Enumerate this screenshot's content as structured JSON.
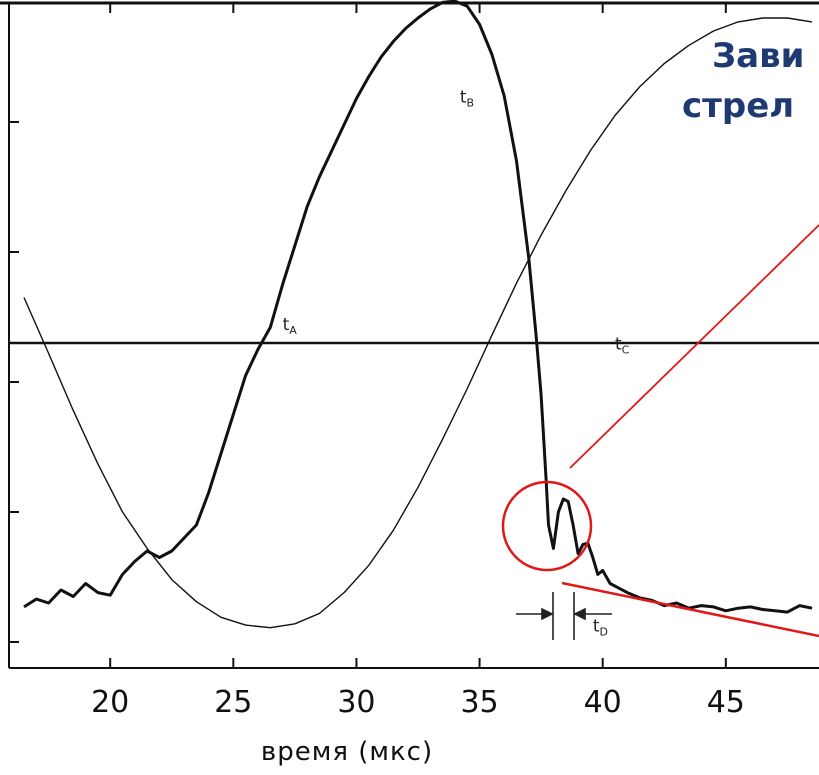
{
  "chart_data": {
    "type": "line",
    "xlabel": "время (мкс)",
    "ylabel": "",
    "xlim": [
      16.5,
      48.5
    ],
    "ylim": [
      0,
      5
    ],
    "x_ticks": [
      20,
      25,
      30,
      35,
      40,
      45
    ],
    "x_tick_labels": [
      "20",
      "25",
      "30",
      "35",
      "40",
      "45"
    ],
    "y_ticks": [
      0.2,
      1.2,
      2.2,
      3.2,
      4.2,
      5.2
    ],
    "threshold_y": 2.5,
    "grid": false,
    "legend": "none",
    "annotations": [
      {
        "label": "t",
        "sub": "A",
        "x": 27.0,
        "y": 2.6
      },
      {
        "label": "t",
        "sub": "B",
        "x": 34.2,
        "y": 4.35
      },
      {
        "label": "t",
        "sub": "C",
        "x": 40.5,
        "y": 2.45
      },
      {
        "label": "t",
        "sub": "D",
        "x": 39.6,
        "y": 0.28
      }
    ],
    "series": [
      {
        "style": "thick",
        "x": [
          16.5,
          17.0,
          17.5,
          18.0,
          18.5,
          19.0,
          19.5,
          20.0,
          20.5,
          21.0,
          21.5,
          22.0,
          22.5,
          23.0,
          23.5,
          24.0,
          24.5,
          25.0,
          25.5,
          26.0,
          26.5,
          27.0,
          27.5,
          28.0,
          28.5,
          29.0,
          29.5,
          30.0,
          30.5,
          31.0,
          31.5,
          32.0,
          32.5,
          33.0,
          33.5,
          34.0,
          34.5,
          35.0,
          35.5,
          36.0,
          36.5,
          37.0,
          37.3,
          37.5,
          37.7,
          37.8,
          38.0,
          38.2,
          38.4,
          38.6,
          38.8,
          39.0,
          39.2,
          39.4,
          39.6,
          39.8,
          40.0,
          40.3,
          40.6,
          41.0,
          41.5,
          42.0,
          42.5,
          43.0,
          43.5,
          44.0,
          44.5,
          45.0,
          45.5,
          46.0,
          46.5,
          47.0,
          47.5,
          48.0,
          48.5
        ],
        "y": [
          0.47,
          0.53,
          0.5,
          0.6,
          0.55,
          0.65,
          0.58,
          0.56,
          0.72,
          0.82,
          0.9,
          0.85,
          0.9,
          1.0,
          1.1,
          1.35,
          1.65,
          1.95,
          2.25,
          2.45,
          2.62,
          2.95,
          3.25,
          3.55,
          3.78,
          3.98,
          4.18,
          4.38,
          4.55,
          4.7,
          4.82,
          4.92,
          5.0,
          5.07,
          5.12,
          5.13,
          5.09,
          4.95,
          4.72,
          4.4,
          3.9,
          3.15,
          2.55,
          2.1,
          1.45,
          1.1,
          0.92,
          1.2,
          1.3,
          1.28,
          1.1,
          0.88,
          0.95,
          0.96,
          0.85,
          0.72,
          0.75,
          0.65,
          0.62,
          0.58,
          0.54,
          0.52,
          0.48,
          0.5,
          0.46,
          0.48,
          0.47,
          0.44,
          0.46,
          0.47,
          0.45,
          0.44,
          0.43,
          0.48,
          0.46
        ]
      },
      {
        "style": "thin",
        "x": [
          16.5,
          17.5,
          18.5,
          19.5,
          20.5,
          21.5,
          22.5,
          23.5,
          24.5,
          25.5,
          26.5,
          27.5,
          28.5,
          29.5,
          30.5,
          31.5,
          32.5,
          33.5,
          34.5,
          35.5,
          36.5,
          37.5,
          38.5,
          39.5,
          40.5,
          41.5,
          42.5,
          43.5,
          44.5,
          45.5,
          46.5,
          47.5,
          48.5
        ],
        "y": [
          2.85,
          2.42,
          1.98,
          1.57,
          1.2,
          0.92,
          0.68,
          0.51,
          0.39,
          0.33,
          0.31,
          0.34,
          0.42,
          0.58,
          0.79,
          1.06,
          1.39,
          1.76,
          2.15,
          2.56,
          2.96,
          3.33,
          3.67,
          3.98,
          4.25,
          4.47,
          4.65,
          4.79,
          4.9,
          4.97,
          5.0,
          5.0,
          4.97
        ]
      }
    ]
  },
  "overlay": {
    "title_line1": "Зави",
    "title_line2": "стрел"
  }
}
